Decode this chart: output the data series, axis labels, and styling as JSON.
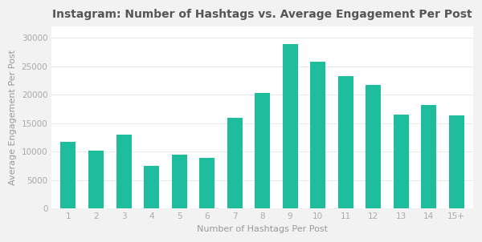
{
  "title": "Instagram: Number of Hashtags vs. Average Engagement Per Post",
  "xlabel": "Number of Hashtags Per Post",
  "ylabel": "Average Engagement Per Post",
  "categories": [
    "1",
    "2",
    "3",
    "4",
    "5",
    "6",
    "7",
    "8",
    "9",
    "10",
    "11",
    "12",
    "13",
    "14",
    "15+"
  ],
  "values": [
    11700,
    10200,
    13000,
    7600,
    9500,
    9000,
    16000,
    20300,
    29000,
    25900,
    23300,
    21700,
    16500,
    18300,
    16400
  ],
  "bar_color": "#1DBD9E",
  "background_color": "#F2F2F2",
  "plot_bg_color": "#FFFFFF",
  "title_fontsize": 10,
  "label_fontsize": 8,
  "tick_fontsize": 7.5,
  "ylim": [
    0,
    32000
  ],
  "yticks": [
    0,
    5000,
    10000,
    15000,
    20000,
    25000,
    30000
  ]
}
